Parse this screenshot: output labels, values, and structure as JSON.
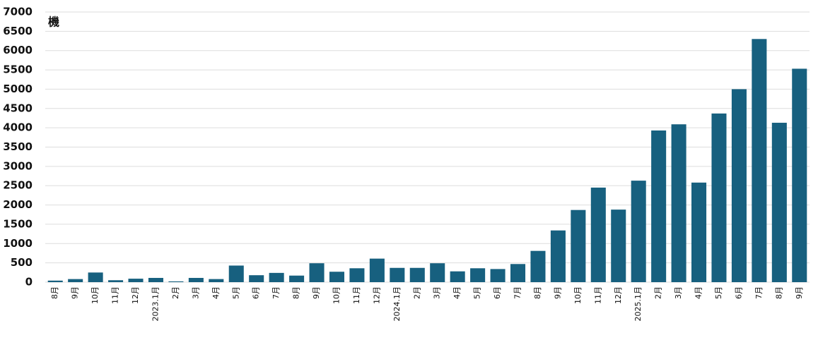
{
  "chart_data": {
    "type": "bar",
    "y_label": "機",
    "categories": [
      "8月",
      "9月",
      "10月",
      "11月",
      "12月",
      "2023.1月",
      "2月",
      "3月",
      "4月",
      "5月",
      "6月",
      "7月",
      "8月",
      "9月",
      "10月",
      "11月",
      "12月",
      "2024.1月",
      "2月",
      "3月",
      "4月",
      "5月",
      "6月",
      "7月",
      "8月",
      "9月",
      "10月",
      "11月",
      "12月",
      "2025.1月",
      "2月",
      "3月",
      "4月",
      "5月",
      "6月",
      "7月",
      "8月",
      "9月"
    ],
    "values": [
      40,
      80,
      250,
      50,
      90,
      110,
      20,
      110,
      80,
      430,
      180,
      240,
      170,
      490,
      270,
      360,
      610,
      370,
      370,
      490,
      280,
      360,
      340,
      470,
      810,
      1340,
      1870,
      2450,
      1880,
      2630,
      3930,
      4090,
      2580,
      4370,
      5000,
      6300,
      4130,
      5530
    ],
    "color": "#17607f",
    "ylim": [
      0,
      7000
    ],
    "yticks": [
      0,
      500,
      1000,
      1500,
      2000,
      2500,
      3000,
      3500,
      4000,
      4500,
      5000,
      5500,
      6000,
      6500,
      7000
    ],
    "grid": true
  }
}
